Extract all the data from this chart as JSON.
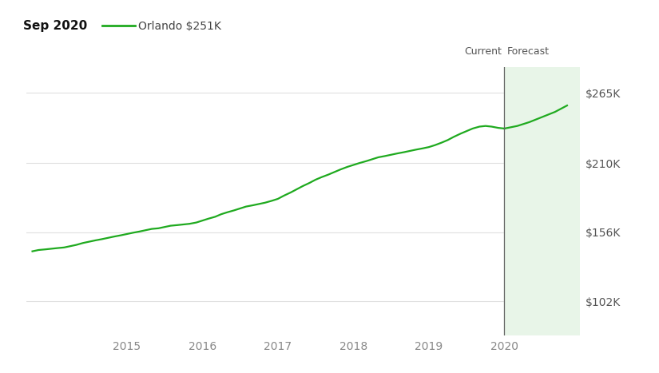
{
  "title_date": "Sep 2020",
  "legend_label": "Orlando $251K",
  "line_color": "#1faa1f",
  "forecast_fill_color": "#e8f5e8",
  "current_line_color": "#666666",
  "background_color": "#ffffff",
  "ytick_labels": [
    "$102K",
    "$156K",
    "$210K",
    "$265K"
  ],
  "ytick_values": [
    102000,
    156000,
    210000,
    265000
  ],
  "ylim": [
    75000,
    285000
  ],
  "xlim_start": 2013.67,
  "xlim_end": 2021.0,
  "current_x": 2020.0,
  "forecast_end_x": 2021.0,
  "xtick_values": [
    2015,
    2016,
    2017,
    2018,
    2019,
    2020
  ],
  "xtick_labels": [
    "2015",
    "2016",
    "2017",
    "2018",
    "2019",
    "2020"
  ],
  "x_data": [
    2013.75,
    2013.83,
    2013.92,
    2014.0,
    2014.08,
    2014.17,
    2014.25,
    2014.33,
    2014.42,
    2014.5,
    2014.58,
    2014.67,
    2014.75,
    2014.83,
    2014.92,
    2015.0,
    2015.08,
    2015.17,
    2015.25,
    2015.33,
    2015.42,
    2015.5,
    2015.58,
    2015.67,
    2015.75,
    2015.83,
    2015.92,
    2016.0,
    2016.08,
    2016.17,
    2016.25,
    2016.33,
    2016.42,
    2016.5,
    2016.58,
    2016.67,
    2016.75,
    2016.83,
    2016.92,
    2017.0,
    2017.08,
    2017.17,
    2017.25,
    2017.33,
    2017.42,
    2017.5,
    2017.58,
    2017.67,
    2017.75,
    2017.83,
    2017.92,
    2018.0,
    2018.08,
    2018.17,
    2018.25,
    2018.33,
    2018.42,
    2018.5,
    2018.58,
    2018.67,
    2018.75,
    2018.83,
    2018.92,
    2019.0,
    2019.08,
    2019.17,
    2019.25,
    2019.33,
    2019.42,
    2019.5,
    2019.58,
    2019.67,
    2019.75,
    2019.83,
    2019.92,
    2020.0,
    2020.17,
    2020.33,
    2020.5,
    2020.67,
    2020.83
  ],
  "y_data": [
    141000,
    142000,
    142500,
    143000,
    143500,
    144000,
    145000,
    146000,
    147500,
    148500,
    149500,
    150500,
    151500,
    152500,
    153500,
    154500,
    155500,
    156500,
    157500,
    158500,
    159000,
    160000,
    161000,
    161500,
    162000,
    162500,
    163500,
    165000,
    166500,
    168000,
    170000,
    171500,
    173000,
    174500,
    176000,
    177000,
    178000,
    179000,
    180500,
    182000,
    184500,
    187000,
    189500,
    192000,
    194500,
    197000,
    199000,
    201000,
    203000,
    205000,
    207000,
    208500,
    210000,
    211500,
    213000,
    214500,
    215500,
    216500,
    217500,
    218500,
    219500,
    220500,
    221500,
    222500,
    224000,
    226000,
    228000,
    230500,
    233000,
    235000,
    237000,
    238500,
    239000,
    238500,
    237500,
    237000,
    239000,
    242000,
    246000,
    250000,
    255000
  ],
  "current_label": "Current",
  "forecast_label": "Forecast"
}
